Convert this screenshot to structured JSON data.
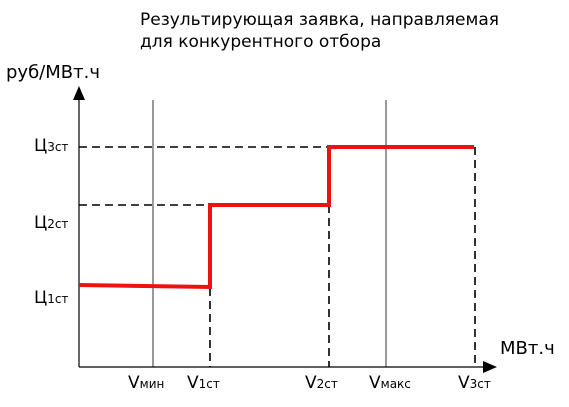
{
  "title": {
    "line1": "Результирующая заявка, направляемая",
    "line2": "для конкурентного отбора"
  },
  "axes": {
    "y_unit": "руб/МВт.ч",
    "x_unit": "МВт.ч"
  },
  "y_levels": [
    {
      "main": "Ц",
      "sub": "1ст"
    },
    {
      "main": "Ц",
      "sub": "2ст"
    },
    {
      "main": "Ц",
      "sub": "3ст"
    }
  ],
  "x_points": [
    {
      "main": "V",
      "sub": "мин"
    },
    {
      "main": "V",
      "sub": "1ст"
    },
    {
      "main": "V",
      "sub": "2ст"
    },
    {
      "main": "V",
      "sub": "макс"
    },
    {
      "main": "V",
      "sub": "3ст"
    }
  ],
  "colors": {
    "step_line": "#ee1111",
    "axis": "#000000"
  }
}
